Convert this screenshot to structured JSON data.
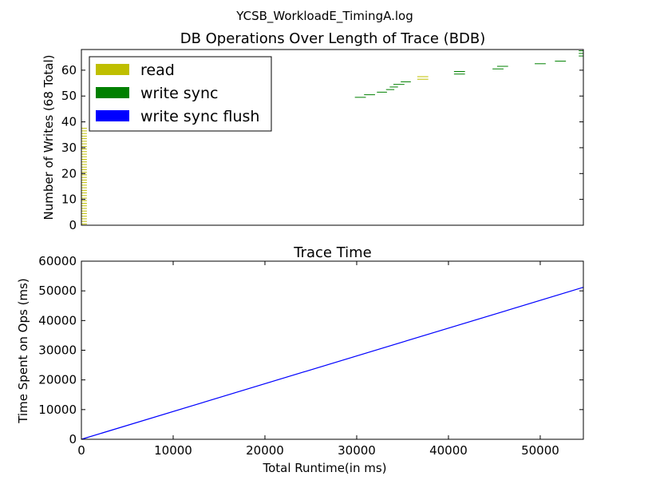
{
  "suptitle": "YCSB_WorkloadE_TimingA.log",
  "chart_data": [
    {
      "type": "scatter",
      "title": "DB Operations Over Length of Trace (BDB)",
      "xlabel": "",
      "ylabel": "Number of Writes (68 Total)",
      "xlim": [
        0,
        54700
      ],
      "ylim": [
        0,
        68
      ],
      "xticks_visible": false,
      "yticks": [
        0,
        10,
        20,
        30,
        40,
        50,
        60
      ],
      "grid": false,
      "legend_position": "top-left",
      "legend": [
        {
          "label": "read",
          "color": "#bfbf00"
        },
        {
          "label": "write sync",
          "color": "#008000"
        },
        {
          "label": "write sync flush",
          "color": "#0000ff"
        }
      ],
      "series": [
        {
          "name": "read",
          "color": "#bfbf00",
          "segments": [
            [
              0,
              0,
              600
            ],
            [
              0,
              1,
              600
            ],
            [
              0,
              2,
              600
            ],
            [
              0,
              3,
              600
            ],
            [
              0,
              4,
              600
            ],
            [
              0,
              5,
              600
            ],
            [
              0,
              6,
              600
            ],
            [
              0,
              7,
              600
            ],
            [
              0,
              8,
              600
            ],
            [
              0,
              9,
              600
            ],
            [
              0,
              10,
              600
            ],
            [
              0,
              11,
              600
            ],
            [
              0,
              12,
              600
            ],
            [
              0,
              13,
              600
            ],
            [
              0,
              14,
              600
            ],
            [
              0,
              15,
              600
            ],
            [
              0,
              16,
              600
            ],
            [
              0,
              17,
              600
            ],
            [
              0,
              18,
              600
            ],
            [
              0,
              19,
              600
            ],
            [
              0,
              20,
              600
            ],
            [
              0,
              21,
              600
            ],
            [
              0,
              22,
              600
            ],
            [
              0,
              23,
              600
            ],
            [
              0,
              24,
              600
            ],
            [
              0,
              25,
              600
            ],
            [
              0,
              26,
              600
            ],
            [
              0,
              27,
              600
            ],
            [
              0,
              28,
              600
            ],
            [
              0,
              29,
              600
            ],
            [
              0,
              30,
              600
            ],
            [
              0,
              31,
              600
            ],
            [
              0,
              32,
              600
            ],
            [
              0,
              33,
              600
            ],
            [
              0,
              34,
              600
            ],
            [
              0,
              35,
              600
            ],
            [
              0,
              36,
              600
            ],
            [
              0,
              37,
              600
            ],
            [
              36600,
              56,
              1200
            ],
            [
              36600,
              57,
              1200
            ]
          ]
        },
        {
          "name": "write sync",
          "color": "#008000",
          "segments": [
            [
              29800,
              49,
              1200
            ],
            [
              30800,
              50,
              1200
            ],
            [
              32200,
              51,
              1100
            ],
            [
              33200,
              52,
              900
            ],
            [
              33600,
              53,
              900
            ],
            [
              34000,
              54,
              1200
            ],
            [
              34800,
              55,
              1100
            ],
            [
              40600,
              58,
              1200
            ],
            [
              40600,
              59,
              1200
            ],
            [
              44800,
              60,
              1200
            ],
            [
              45300,
              61,
              1200
            ],
            [
              49400,
              62,
              1200
            ],
            [
              51600,
              63,
              1200
            ],
            [
              54200,
              65,
              500
            ],
            [
              54200,
              66,
              500
            ],
            [
              54200,
              67,
              500
            ]
          ]
        }
      ]
    },
    {
      "type": "line",
      "title": "Trace Time",
      "xlabel": "Total Runtime(in ms)",
      "ylabel": "Time Spent on Ops (ms)",
      "xlim": [
        0,
        54700
      ],
      "ylim": [
        0,
        60000
      ],
      "xticks": [
        0,
        10000,
        20000,
        30000,
        40000,
        50000
      ],
      "yticks": [
        0,
        10000,
        20000,
        30000,
        40000,
        50000,
        60000
      ],
      "grid": false,
      "series": [
        {
          "color": "#0000ff",
          "x": [
            0,
            54700
          ],
          "y": [
            0,
            51200
          ]
        }
      ]
    }
  ]
}
